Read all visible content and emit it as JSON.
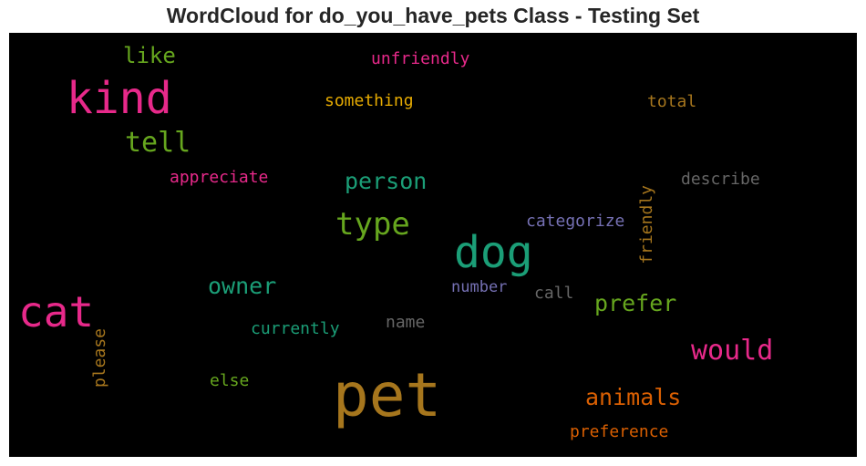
{
  "chart_data": {
    "type": "wordcloud",
    "title": "WordCloud for do_you_have_pets Class - Testing Set",
    "background": "#000000",
    "colormap": "Dark2",
    "words": [
      {
        "text": "pet",
        "color": "#a6761d"
      },
      {
        "text": "kind",
        "color": "#e7298a"
      },
      {
        "text": "dog",
        "color": "#1b9e77"
      },
      {
        "text": "cat",
        "color": "#e7298a"
      },
      {
        "text": "type",
        "color": "#66a61e"
      },
      {
        "text": "tell",
        "color": "#66a61e"
      },
      {
        "text": "would",
        "color": "#e7298a"
      },
      {
        "text": "like",
        "color": "#66a61e"
      },
      {
        "text": "person",
        "color": "#1b9e77"
      },
      {
        "text": "animals",
        "color": "#d95f02"
      },
      {
        "text": "prefer",
        "color": "#66a61e"
      },
      {
        "text": "owner",
        "color": "#1b9e77"
      },
      {
        "text": "unfriendly",
        "color": "#e7298a"
      },
      {
        "text": "something",
        "color": "#e6ab02"
      },
      {
        "text": "total",
        "color": "#a6761d"
      },
      {
        "text": "appreciate",
        "color": "#e7298a"
      },
      {
        "text": "describe",
        "color": "#666666"
      },
      {
        "text": "categorize",
        "color": "#7570b3"
      },
      {
        "text": "friendly",
        "color": "#a6761d"
      },
      {
        "text": "number",
        "color": "#7570b3"
      },
      {
        "text": "call",
        "color": "#666666"
      },
      {
        "text": "currently",
        "color": "#1b9e77"
      },
      {
        "text": "name",
        "color": "#666666"
      },
      {
        "text": "please",
        "color": "#a6761d"
      },
      {
        "text": "else",
        "color": "#66a61e"
      },
      {
        "text": "preference",
        "color": "#d95f02"
      }
    ]
  }
}
